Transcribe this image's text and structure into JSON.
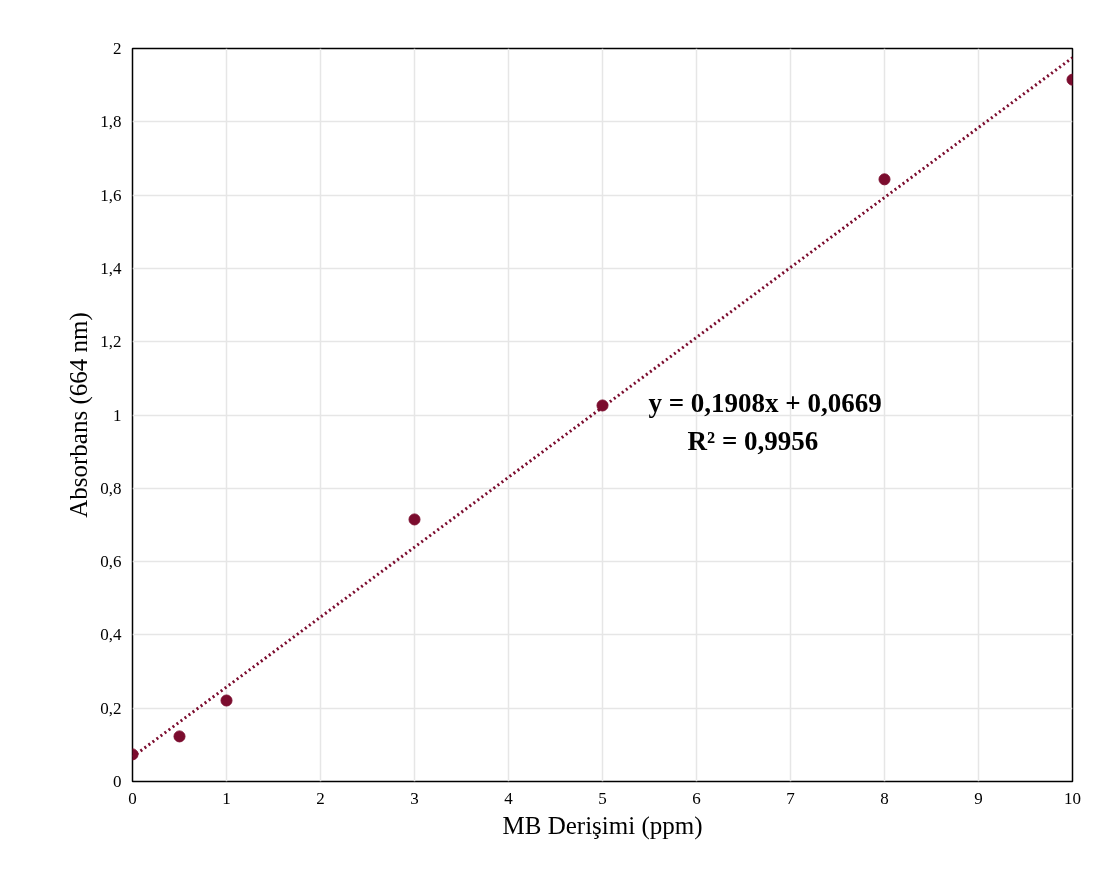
{
  "chart_data": {
    "type": "scatter",
    "xlabel": "MB Derişimi (ppm)",
    "ylabel": "Absorbans (664 nm)",
    "xlim": [
      0,
      10
    ],
    "xticks": [
      0,
      1,
      2,
      3,
      4,
      5,
      6,
      7,
      8,
      9,
      10
    ],
    "ylim": [
      0,
      2
    ],
    "yticks": [
      0,
      {
        "value": 0.2,
        "label": "0,2"
      },
      {
        "value": 0.4,
        "label": "0,4"
      },
      {
        "value": 0.6,
        "label": "0,6"
      },
      {
        "value": 0.8,
        "label": "0,8"
      },
      1,
      {
        "value": 1.2,
        "label": "1,2"
      },
      {
        "value": 1.4,
        "label": "1,4"
      },
      {
        "value": 1.6,
        "label": "1,6"
      },
      {
        "value": 1.8,
        "label": "1,8"
      },
      2
    ],
    "grid": true,
    "series": [
      {
        "color": "#7b0c2e",
        "marker": "circle",
        "x": [
          0,
          0.5,
          1,
          3,
          5,
          8,
          10
        ],
        "values": [
          0.074,
          0.123,
          0.221,
          0.715,
          1.026,
          1.643,
          1.915
        ]
      },
      {
        "type": "line",
        "color": "#7b0c2e",
        "line_style": "dotted",
        "marker": "none",
        "x": [
          0,
          10
        ],
        "values": [
          0.067,
          1.975
        ]
      }
    ],
    "annotations": [
      "y = 0,1908x + 0,0669",
      "R² = 0,9956"
    ]
  }
}
